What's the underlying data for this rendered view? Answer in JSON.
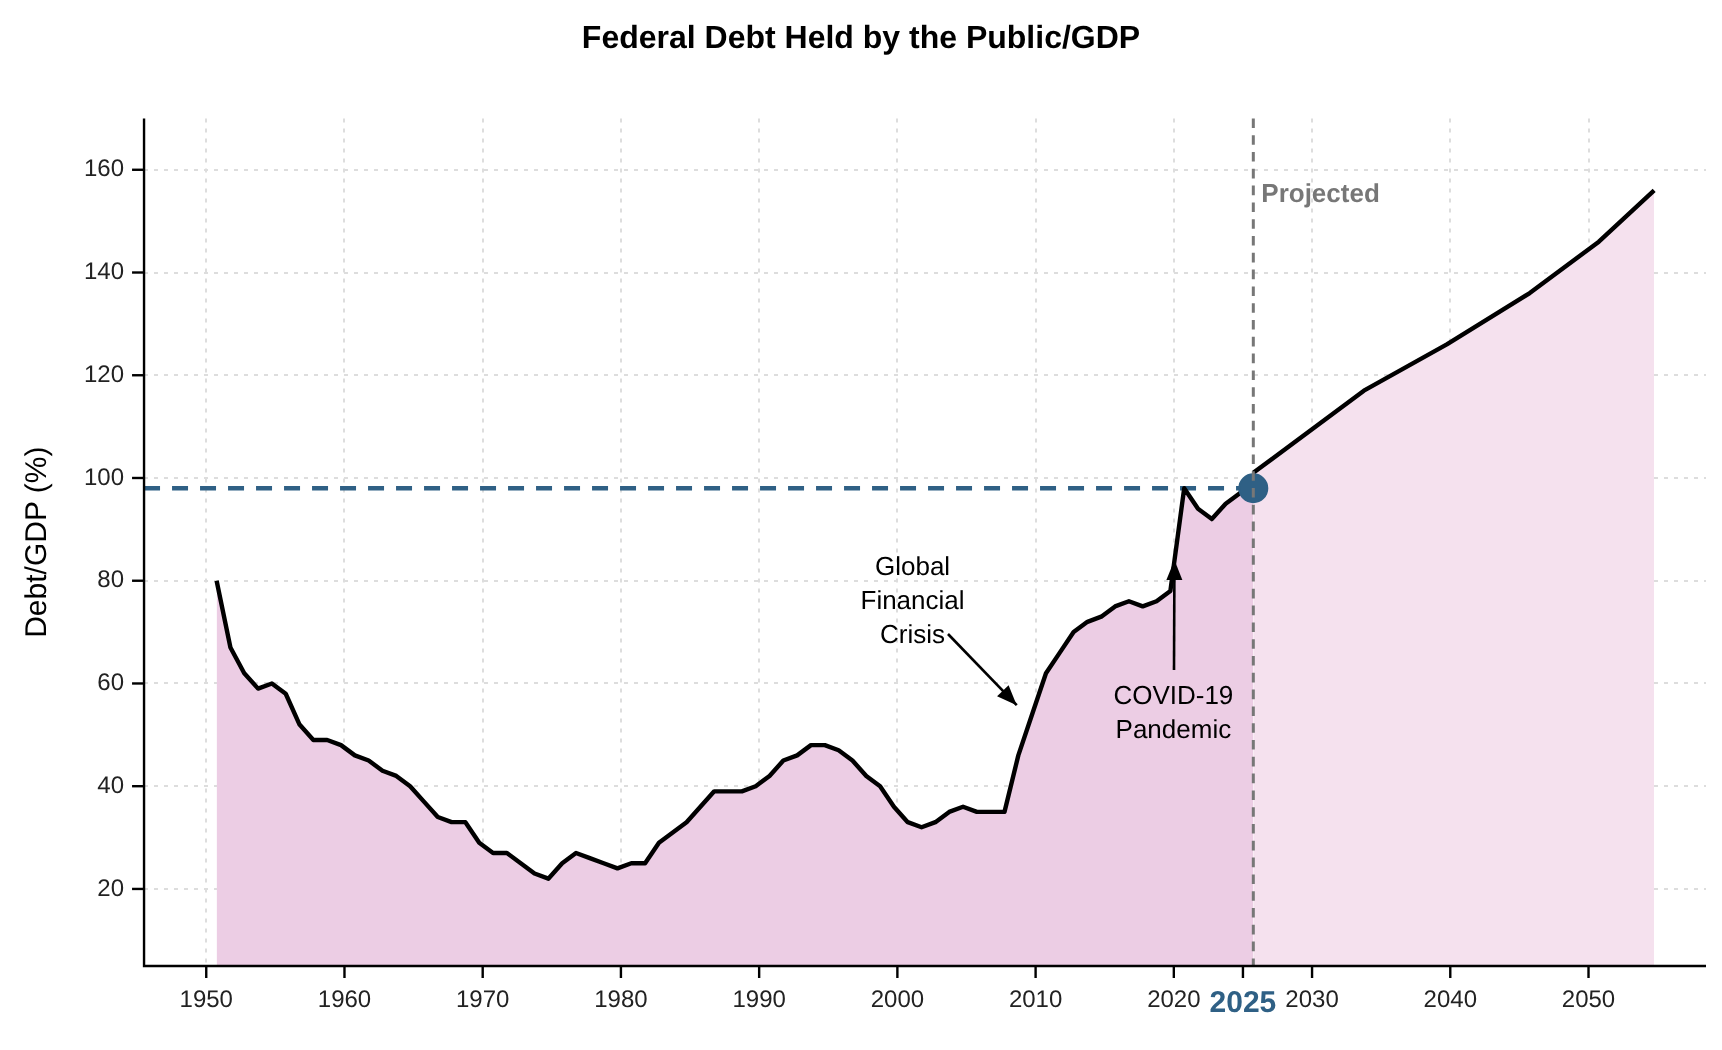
{
  "chart_data": {
    "type": "area",
    "title": "Federal Debt Held by the Public/GDP",
    "ylabel": "Debt/GDP (%)",
    "xlim": [
      1945.5,
      2058.5
    ],
    "ylim": [
      5,
      170
    ],
    "xticks": [
      1950,
      1960,
      1970,
      1980,
      1990,
      2000,
      2010,
      2020,
      2025,
      2030,
      2040,
      2050
    ],
    "yticks": [
      20,
      40,
      60,
      80,
      100,
      120,
      140,
      160
    ],
    "grid": true,
    "legend": false,
    "series": [
      {
        "type": "area",
        "color": "#eccde4",
        "x": [
          1950.75,
          1951.75,
          1952.75,
          1953.75,
          1954.75,
          1955.75,
          1956.75,
          1957.75,
          1958.75,
          1959.75,
          1960.75,
          1961.75,
          1962.75,
          1963.75,
          1964.75,
          1965.75,
          1966.75,
          1967.75,
          1968.75,
          1969.75,
          1970.75,
          1971.75,
          1972.75,
          1973.75,
          1974.75,
          1975.75,
          1976.75,
          1977.75,
          1978.75,
          1979.75,
          1980.75,
          1981.75,
          1982.75,
          1983.75,
          1984.75,
          1985.75,
          1986.75,
          1987.75,
          1988.75,
          1989.75,
          1990.75,
          1991.75,
          1992.75,
          1993.75,
          1994.75,
          1995.75,
          1996.75,
          1997.75,
          1998.75,
          1999.75,
          2000.75,
          2001.75,
          2002.75,
          2003.75,
          2004.75,
          2005.75,
          2006.75,
          2007.75,
          2008.75,
          2009.75,
          2010.75,
          2011.75,
          2012.75,
          2013.75,
          2014.75,
          2015.75,
          2016.75,
          2017.75,
          2018.75,
          2019.75,
          2020.75,
          2021.75,
          2022.75,
          2023.75,
          2024.75,
          2025.75
        ],
        "values": [
          80,
          67,
          62,
          59,
          60,
          58,
          52,
          49,
          49,
          48,
          46,
          45,
          43,
          42,
          40,
          37,
          34,
          33,
          33,
          29,
          27,
          27,
          25,
          23,
          22,
          25,
          27,
          26,
          25,
          24,
          25,
          25,
          29,
          31,
          33,
          36,
          39,
          39,
          39,
          40,
          42,
          45,
          46,
          48,
          48,
          47,
          45,
          42,
          40,
          36,
          33,
          32,
          33,
          35,
          36,
          35,
          35,
          35,
          46,
          54,
          62,
          66,
          70,
          72,
          73,
          75,
          76,
          75,
          76,
          78,
          98,
          94,
          92,
          95,
          97,
          98
        ]
      },
      {
        "type": "area",
        "color": "#f5e1ee",
        "x": [
          2025.75,
          2033.75,
          2039.75,
          2045.75,
          2050.75,
          2054.75
        ],
        "values": [
          101,
          117,
          126,
          136,
          146,
          156
        ]
      },
      {
        "type": "line",
        "color": "#2f6085",
        "line_style": "dashed",
        "marker": "none",
        "x": [
          1945.5,
          2025.75
        ],
        "values": [
          98,
          98
        ]
      },
      {
        "type": "scatter",
        "color": "#2f6085",
        "marker": "circle",
        "x": [
          2025.75
        ],
        "values": [
          98
        ]
      }
    ],
    "ref_lines": [
      {
        "axis": "x",
        "value": 2025.75,
        "label": "Projected",
        "color": "#777777",
        "line_style": "dashed"
      }
    ],
    "annotations": [
      "Global Financial Crisis",
      {
        "text": "COVID-19 Pandemic",
        "x": 2020,
        "y": 84
      }
    ]
  }
}
